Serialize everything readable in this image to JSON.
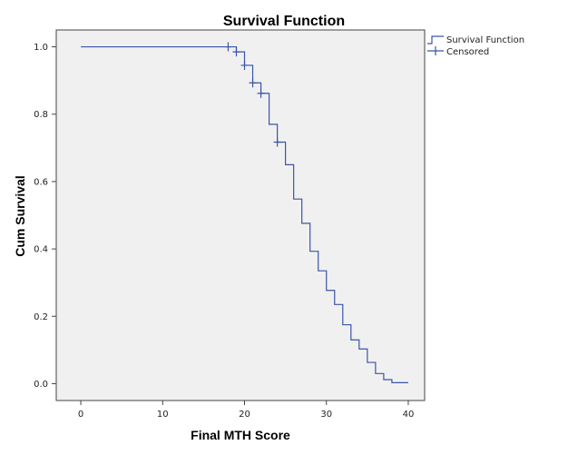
{
  "chart_data": {
    "type": "line",
    "title": "Survival Function",
    "xlabel": "Final MTH Score",
    "ylabel": "Cum Survival",
    "xlim": [
      -3,
      42
    ],
    "ylim": [
      -0.05,
      1.05
    ],
    "x_ticks": [
      0,
      10,
      20,
      30,
      40
    ],
    "y_ticks": [
      0.0,
      0.2,
      0.4,
      0.6,
      0.8,
      1.0
    ],
    "x_tick_labels": [
      "0",
      "10",
      "20",
      "30",
      "40"
    ],
    "y_tick_labels": [
      "0.0",
      "0.2",
      "0.4",
      "0.6",
      "0.8",
      "1.0"
    ],
    "grid": false,
    "legend_position": "top-right",
    "colors": {
      "series": "#3b55a8",
      "plot_bg": "#f0f0f0",
      "frame": "#444444"
    },
    "series": [
      {
        "name": "Survival Function",
        "kind": "step",
        "x": [
          0,
          19,
          20,
          21,
          22,
          23,
          24,
          25,
          26,
          27,
          28,
          29,
          30,
          31,
          32,
          33,
          34,
          35,
          36,
          37,
          38,
          40
        ],
        "y": [
          1.0,
          0.985,
          0.945,
          0.893,
          0.862,
          0.77,
          0.717,
          0.65,
          0.548,
          0.476,
          0.393,
          0.335,
          0.277,
          0.235,
          0.175,
          0.13,
          0.103,
          0.063,
          0.03,
          0.012,
          0.003,
          0.003
        ]
      },
      {
        "name": "Censored",
        "kind": "marker",
        "x": [
          18,
          19,
          20,
          21,
          22,
          24
        ],
        "y": [
          1.0,
          0.985,
          0.945,
          0.893,
          0.862,
          0.717
        ]
      }
    ]
  }
}
